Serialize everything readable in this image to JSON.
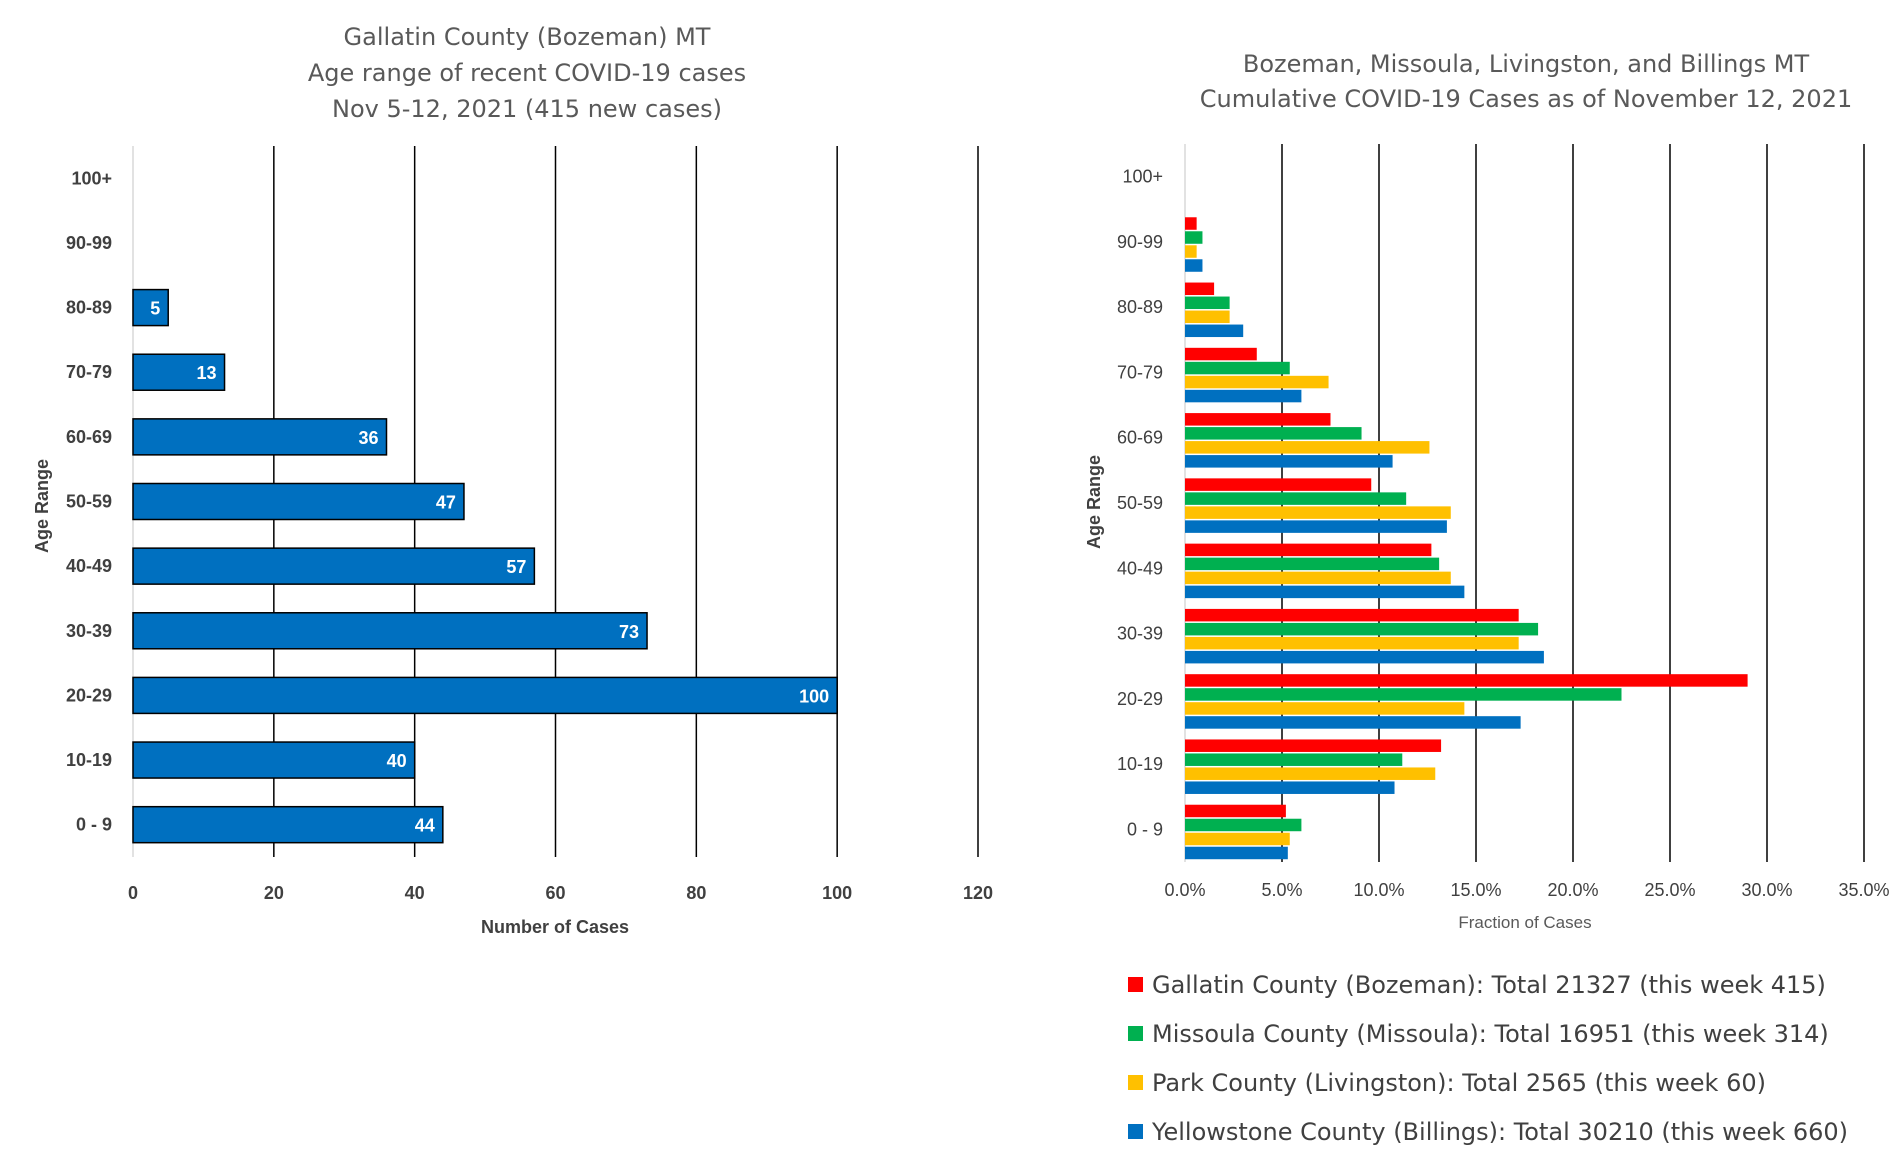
{
  "chart_data": [
    {
      "type": "bar",
      "orientation": "horizontal",
      "title_lines": [
        "Gallatin County (Bozeman) MT",
        "Age range of recent COVID-19 cases",
        "Nov 5-12, 2021 (415 new cases)"
      ],
      "xlabel": "Number of Cases",
      "ylabel": "Age Range",
      "categories": [
        "0 - 9",
        "10-19",
        "20-29",
        "30-39",
        "40-49",
        "50-59",
        "60-69",
        "70-79",
        "80-89",
        "90-99",
        "100+"
      ],
      "values": [
        44,
        40,
        100,
        73,
        57,
        47,
        36,
        13,
        5,
        null,
        null
      ],
      "xlim": [
        0,
        120
      ],
      "xticks": [
        0,
        20,
        40,
        60,
        80,
        100,
        120
      ],
      "grid": "vertical",
      "color": "#0070C0",
      "data_labels": true
    },
    {
      "type": "bar",
      "orientation": "horizontal",
      "title_lines": [
        "Bozeman, Missoula, Livingston, and Billings MT",
        "Cumulative COVID-19 Cases as of November 12, 2021"
      ],
      "xlabel": "Fraction of Cases",
      "ylabel": "Age Range",
      "categories": [
        "0 - 9",
        "10-19",
        "20-29",
        "30-39",
        "40-49",
        "50-59",
        "60-69",
        "70-79",
        "80-89",
        "90-99",
        "100+"
      ],
      "xlim": [
        0,
        0.35
      ],
      "xticks": [
        "0.0%",
        "5.0%",
        "10.0%",
        "15.0%",
        "20.0%",
        "25.0%",
        "30.0%",
        "35.0%"
      ],
      "grid": "vertical",
      "legend_position": "bottom",
      "series": [
        {
          "name": "Gallatin County (Bozeman): Total 21327 (this week 415)",
          "color": "#FF0000",
          "values": [
            0.052,
            0.132,
            0.29,
            0.172,
            0.127,
            0.096,
            0.075,
            0.037,
            0.015,
            0.006,
            0.0
          ]
        },
        {
          "name": "Missoula County (Missoula): Total 16951 (this week 314)",
          "color": "#00B050",
          "values": [
            0.06,
            0.112,
            0.225,
            0.182,
            0.131,
            0.114,
            0.091,
            0.054,
            0.023,
            0.009,
            0.0
          ]
        },
        {
          "name": "Park County (Livingston): Total 2565 (this week 60)",
          "color": "#FFC000",
          "values": [
            0.054,
            0.129,
            0.144,
            0.172,
            0.137,
            0.137,
            0.126,
            0.074,
            0.023,
            0.006,
            0.0
          ]
        },
        {
          "name": "Yellowstone County (Billings): Total 30210 (this week 660)",
          "color": "#0070C0",
          "values": [
            0.053,
            0.108,
            0.173,
            0.185,
            0.144,
            0.135,
            0.107,
            0.06,
            0.03,
            0.009,
            0.0
          ]
        }
      ]
    }
  ]
}
